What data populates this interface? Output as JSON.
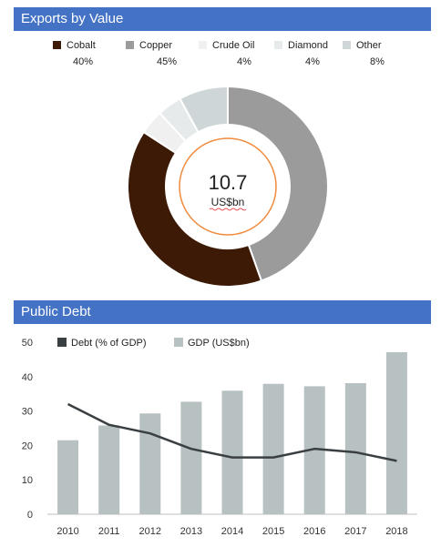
{
  "panels": {
    "exports_title": "Exports by Value",
    "debt_title": "Public Debt"
  },
  "chart_data": [
    {
      "type": "pie",
      "title": "Exports by Value",
      "donut": true,
      "center_value": "10.7",
      "center_unit": "US$bn",
      "slices": [
        {
          "label": "Cobalt",
          "pct_label": "40%",
          "value": 40,
          "color": "#3d1a06"
        },
        {
          "label": "Copper",
          "pct_label": "45%",
          "value": 45,
          "color": "#9b9b9b"
        },
        {
          "label": "Crude Oil",
          "pct_label": "4%",
          "value": 4,
          "color": "#f0f0f0"
        },
        {
          "label": "Diamond",
          "pct_label": "4%",
          "value": 4,
          "color": "#e6eaea"
        },
        {
          "label": "Other",
          "pct_label": "8%",
          "value": 8,
          "color": "#cfd6d7"
        }
      ],
      "ring_color": "#f08a3c"
    },
    {
      "type": "bar",
      "title": "Public Debt",
      "categories": [
        "2010",
        "2011",
        "2012",
        "2013",
        "2014",
        "2015",
        "2016",
        "2017",
        "2018"
      ],
      "series": [
        {
          "name": "Debt (% of GDP)",
          "kind": "line",
          "color": "#3a3f42",
          "values": [
            32,
            26,
            23.5,
            19,
            16.5,
            16.5,
            19,
            18,
            15.5
          ]
        },
        {
          "name": "GDP (US$bn)",
          "kind": "bar",
          "color": "#b8c1c2",
          "values": [
            21.5,
            25.8,
            29.3,
            32.7,
            35.9,
            37.9,
            37.2,
            38.1,
            47.1
          ]
        }
      ],
      "ylim": [
        0,
        50
      ],
      "yticks": [
        0,
        10,
        20,
        30,
        40,
        50
      ],
      "grid": false,
      "legend_position": "top-left"
    }
  ]
}
